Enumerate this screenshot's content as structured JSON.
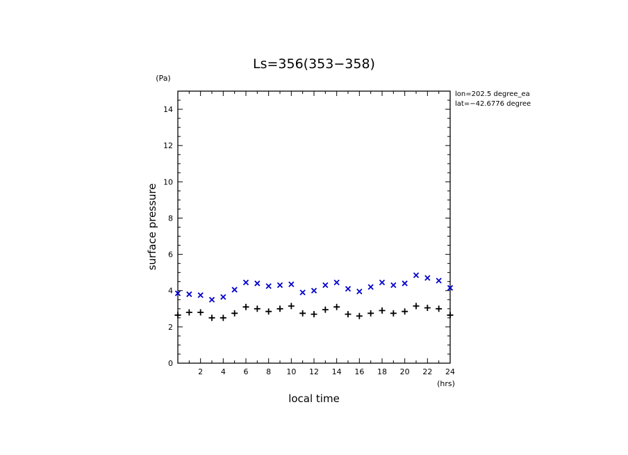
{
  "chart_data": {
    "type": "scatter",
    "title": "Ls=356(353−358)",
    "xlabel": "local time",
    "ylabel": "surface pressure",
    "x_unit": "(hrs)",
    "y_unit": "(Pa)",
    "xlim": [
      0,
      24
    ],
    "ylim": [
      0,
      15
    ],
    "x_ticks": [
      2,
      4,
      6,
      8,
      10,
      12,
      14,
      16,
      18,
      20,
      22,
      24
    ],
    "y_ticks": [
      0,
      2,
      4,
      6,
      8,
      10,
      12,
      14
    ],
    "grid": false,
    "annotations": [
      "lon=202.5 degree_ea",
      "lat=−42.6776 degree"
    ],
    "series": [
      {
        "marker": "x",
        "color": "#0000cc",
        "x": [
          0,
          1,
          2,
          3,
          4,
          5,
          6,
          7,
          8,
          9,
          10,
          11,
          12,
          13,
          14,
          15,
          16,
          17,
          18,
          19,
          20,
          21,
          22,
          23,
          24
        ],
        "y": [
          3.85,
          3.8,
          3.75,
          3.5,
          3.65,
          4.05,
          4.45,
          4.4,
          4.25,
          4.3,
          4.35,
          3.9,
          4.0,
          4.3,
          4.45,
          4.1,
          3.95,
          4.2,
          4.45,
          4.3,
          4.4,
          4.85,
          4.7,
          4.55,
          4.15
        ]
      },
      {
        "marker": "+",
        "color": "#000000",
        "x": [
          0,
          1,
          2,
          3,
          4,
          5,
          6,
          7,
          8,
          9,
          10,
          11,
          12,
          13,
          14,
          15,
          16,
          17,
          18,
          19,
          20,
          21,
          22,
          23,
          24
        ],
        "y": [
          2.65,
          2.8,
          2.8,
          2.5,
          2.5,
          2.75,
          3.1,
          3.0,
          2.85,
          3.0,
          3.15,
          2.75,
          2.7,
          2.95,
          3.1,
          2.7,
          2.6,
          2.75,
          2.9,
          2.75,
          2.85,
          3.15,
          3.05,
          3.0,
          2.65
        ]
      }
    ]
  }
}
